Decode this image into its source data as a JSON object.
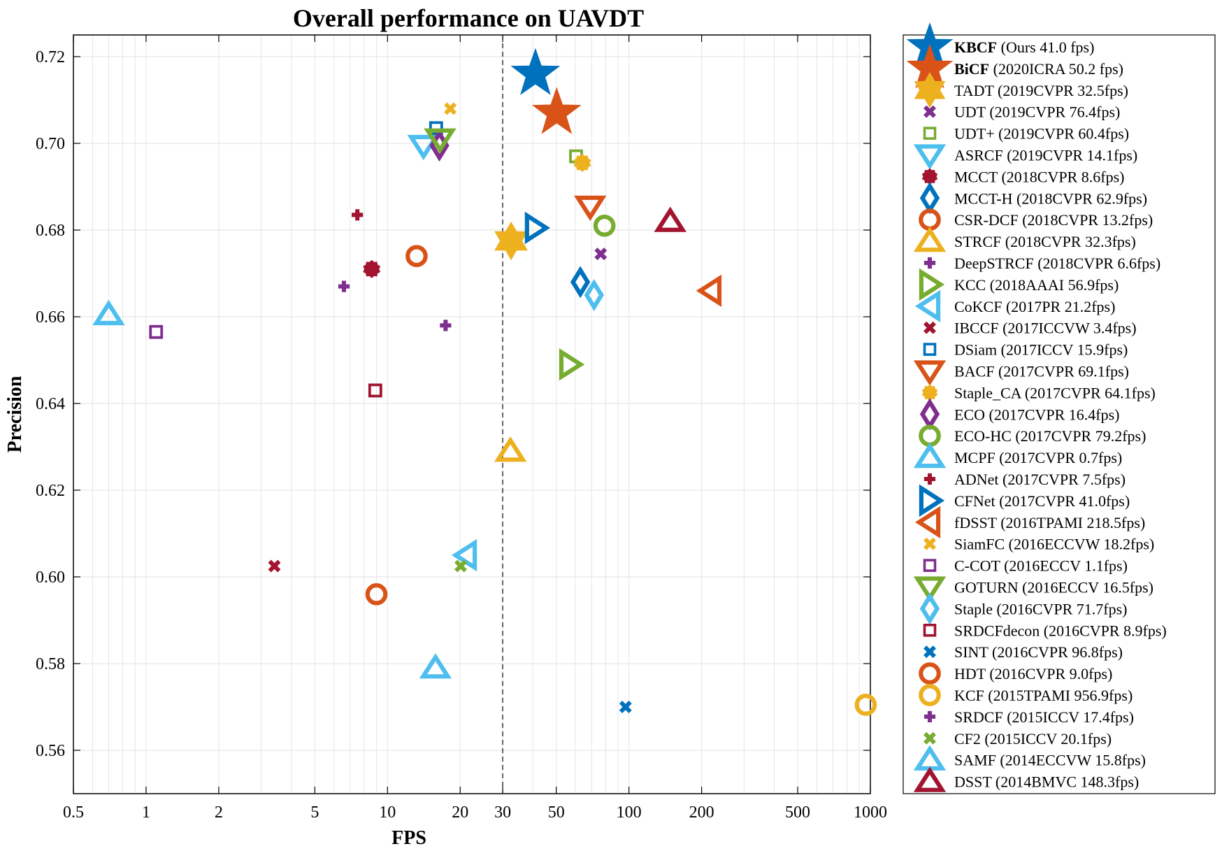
{
  "chart_data": {
    "type": "scatter",
    "title": "Overall performance on UAVDT",
    "xlabel": "FPS",
    "ylabel": "Precision",
    "xscale": "log",
    "xlim": [
      0.5,
      1000
    ],
    "ylim": [
      0.55,
      0.725
    ],
    "xticks": [
      0.5,
      1,
      2,
      5,
      10,
      20,
      30,
      50,
      100,
      200,
      500,
      1000
    ],
    "xtick_labels": [
      "0.5",
      "1",
      "2",
      "5",
      "10",
      "20",
      "30",
      "50",
      "100",
      "200",
      "500",
      "1000"
    ],
    "yticks": [
      0.56,
      0.58,
      0.6,
      0.62,
      0.64,
      0.66,
      0.68,
      0.7,
      0.72
    ],
    "ytick_labels": [
      "0.56",
      "0.58",
      "0.60",
      "0.62",
      "0.64",
      "0.66",
      "0.68",
      "0.70",
      "0.72"
    ],
    "grid": true,
    "reference_line_x": 30,
    "legend_position": "outside-right",
    "series": [
      {
        "name": "KBCF",
        "detail": " (Ours 41.0 fps)",
        "bold": true,
        "marker": "star",
        "color": "#0072BD",
        "x": 41.0,
        "y": 0.716
      },
      {
        "name": "BiCF",
        "detail": " (2020ICRA 50.2 fps)",
        "bold": true,
        "marker": "star",
        "color": "#D95319",
        "x": 50.2,
        "y": 0.707
      },
      {
        "name": "TADT",
        "detail": " (2019CVPR 32.5fps)",
        "marker": "hexagram",
        "color": "#EDB120",
        "x": 32.5,
        "y": 0.6775
      },
      {
        "name": "UDT",
        "detail": " (2019CVPR 76.4fps)",
        "marker": "x",
        "color": "#7E2F8E",
        "x": 76.4,
        "y": 0.6745
      },
      {
        "name": "UDT+",
        "detail": " (2019CVPR 60.4fps)",
        "marker": "square",
        "color": "#77AC30",
        "x": 60.4,
        "y": 0.697
      },
      {
        "name": "ASRCF",
        "detail": " (2019CVPR 14.1fps)",
        "marker": "triangle-down",
        "color": "#4DBEEE",
        "x": 14.1,
        "y": 0.6995
      },
      {
        "name": "MCCT",
        "detail": " (2018CVPR 8.6fps)",
        "marker": "dot",
        "color": "#A2142F",
        "x": 8.6,
        "y": 0.671
      },
      {
        "name": "MCCT-H",
        "detail": " (2018CVPR 62.9fps)",
        "marker": "diamond",
        "color": "#0072BD",
        "x": 62.9,
        "y": 0.668
      },
      {
        "name": "CSR-DCF",
        "detail": " (2018CVPR 13.2fps)",
        "marker": "circle",
        "color": "#D95319",
        "x": 13.2,
        "y": 0.674
      },
      {
        "name": "STRCF",
        "detail": " (2018CVPR 32.3fps)",
        "marker": "triangle-up",
        "color": "#EDB120",
        "x": 32.3,
        "y": 0.629
      },
      {
        "name": "DeepSTRCF",
        "detail": " (2018CVPR 6.6fps)",
        "marker": "plus",
        "color": "#7E2F8E",
        "x": 6.6,
        "y": 0.667
      },
      {
        "name": "KCC",
        "detail": " (2018AAAI 56.9fps)",
        "marker": "triangle-right",
        "color": "#77AC30",
        "x": 56.9,
        "y": 0.649
      },
      {
        "name": "CoKCF",
        "detail": " (2017PR 21.2fps)",
        "marker": "triangle-left",
        "color": "#4DBEEE",
        "x": 21.2,
        "y": 0.605
      },
      {
        "name": "IBCCF",
        "detail": " (2017ICCVW 3.4fps)",
        "marker": "x",
        "color": "#A2142F",
        "x": 3.4,
        "y": 0.6025
      },
      {
        "name": "DSiam",
        "detail": " (2017ICCV 15.9fps)",
        "marker": "square",
        "color": "#0072BD",
        "x": 15.9,
        "y": 0.7035
      },
      {
        "name": "BACF",
        "detail": " (2017CVPR 69.1fps)",
        "marker": "triangle-down",
        "color": "#D95319",
        "x": 69.1,
        "y": 0.6855
      },
      {
        "name": "Staple_CA",
        "detail": " (2017CVPR 64.1fps)",
        "marker": "dot",
        "color": "#EDB120",
        "x": 64.1,
        "y": 0.6955
      },
      {
        "name": "ECO",
        "detail": " (2017CVPR 16.4fps)",
        "marker": "diamond",
        "color": "#7E2F8E",
        "x": 16.4,
        "y": 0.6995
      },
      {
        "name": "ECO-HC",
        "detail": " (2017CVPR 79.2fps)",
        "marker": "circle",
        "color": "#77AC30",
        "x": 79.2,
        "y": 0.681
      },
      {
        "name": "MCPF",
        "detail": " (2017CVPR 0.7fps)",
        "marker": "triangle-up",
        "color": "#4DBEEE",
        "x": 0.7,
        "y": 0.6605
      },
      {
        "name": "ADNet",
        "detail": " (2017CVPR 7.5fps)",
        "marker": "plus",
        "color": "#A2142F",
        "x": 7.5,
        "y": 0.6835
      },
      {
        "name": "CFNet",
        "detail": " (2017CVPR 41.0fps)",
        "marker": "triangle-right",
        "color": "#0072BD",
        "x": 41.0,
        "y": 0.6805
      },
      {
        "name": "fDSST",
        "detail": " (2016TPAMI 218.5fps)",
        "marker": "triangle-left",
        "color": "#D95319",
        "x": 218.5,
        "y": 0.666
      },
      {
        "name": "SiamFC",
        "detail": " (2016ECCVW 18.2fps)",
        "marker": "x",
        "color": "#EDB120",
        "x": 18.2,
        "y": 0.708
      },
      {
        "name": "C-COT",
        "detail": " (2016ECCV 1.1fps)",
        "marker": "square",
        "color": "#7E2F8E",
        "x": 1.1,
        "y": 0.6565
      },
      {
        "name": "GOTURN",
        "detail": " (2016ECCV 16.5fps)",
        "marker": "triangle-down",
        "color": "#77AC30",
        "x": 16.5,
        "y": 0.701
      },
      {
        "name": "Staple",
        "detail": " (2016CVPR 71.7fps)",
        "marker": "diamond",
        "color": "#4DBEEE",
        "x": 71.7,
        "y": 0.665
      },
      {
        "name": "SRDCFdecon",
        "detail": " (2016CVPR 8.9fps)",
        "marker": "square",
        "color": "#A2142F",
        "x": 8.9,
        "y": 0.643
      },
      {
        "name": "SINT",
        "detail": " (2016CVPR 96.8fps)",
        "marker": "x",
        "color": "#0072BD",
        "x": 96.8,
        "y": 0.57
      },
      {
        "name": "HDT",
        "detail": " (2016CVPR 9.0fps)",
        "marker": "circle",
        "color": "#D95319",
        "x": 9.0,
        "y": 0.596
      },
      {
        "name": "KCF",
        "detail": " (2015TPAMI 956.9fps)",
        "marker": "circle",
        "color": "#EDB120",
        "x": 956.9,
        "y": 0.5705
      },
      {
        "name": "SRDCF",
        "detail": " (2015ICCV 17.4fps)",
        "marker": "plus",
        "color": "#7E2F8E",
        "x": 17.4,
        "y": 0.658
      },
      {
        "name": "CF2",
        "detail": " (2015ICCV 20.1fps)",
        "marker": "x",
        "color": "#77AC30",
        "x": 20.1,
        "y": 0.6025
      },
      {
        "name": "SAMF",
        "detail": " (2014ECCVW 15.8fps)",
        "marker": "triangle-up",
        "color": "#4DBEEE",
        "x": 15.8,
        "y": 0.579
      },
      {
        "name": "DSST",
        "detail": " (2014BMVC 148.3fps)",
        "marker": "triangle-up",
        "color": "#A2142F",
        "x": 148.3,
        "y": 0.682
      }
    ]
  }
}
